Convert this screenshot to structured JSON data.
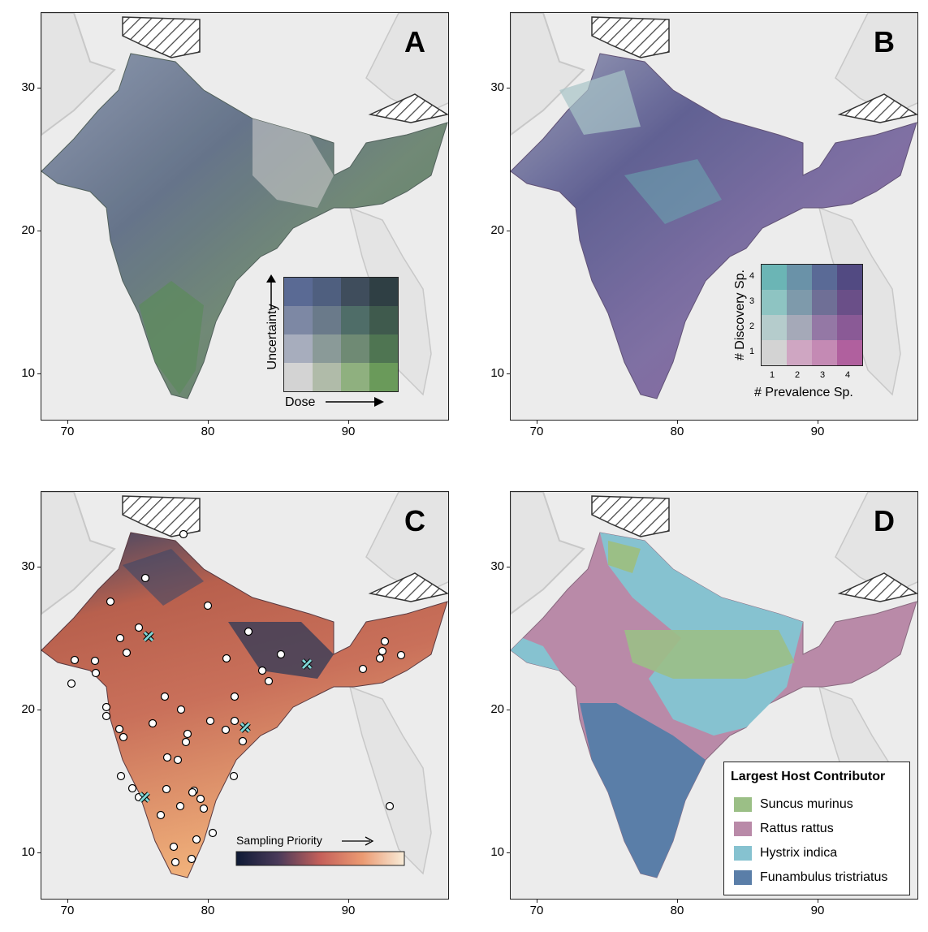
{
  "panels": [
    {
      "id": "A",
      "letter": "A"
    },
    {
      "id": "B",
      "letter": "B"
    },
    {
      "id": "C",
      "letter": "C"
    },
    {
      "id": "D",
      "letter": "D"
    }
  ],
  "axes": {
    "x_ticks": [
      "70",
      "80",
      "90"
    ],
    "y_ticks": [
      "30",
      "20",
      "10"
    ]
  },
  "panel_a_legend": {
    "x_label": "Dose",
    "y_label": "Uncertainty",
    "colors": [
      [
        "#5a6a94",
        "#4f5f7f",
        "#3f4d5c",
        "#2f3f44"
      ],
      [
        "#7d88a4",
        "#6a7a8a",
        "#4f6d68",
        "#3f5a4d"
      ],
      [
        "#a7adbd",
        "#8a9a98",
        "#6f8a74",
        "#4f7552"
      ],
      [
        "#d3d3d3",
        "#b0bba9",
        "#8fb07f",
        "#6a9a5a"
      ]
    ]
  },
  "panel_b_legend": {
    "x_label": "# Prevalence Sp.",
    "y_label": "# Discovery Sp.",
    "x_ticks": [
      "1",
      "2",
      "3",
      "4"
    ],
    "y_ticks": [
      "4",
      "3",
      "2",
      "1"
    ],
    "colors": [
      [
        "#6bb5b5",
        "#6a92a8",
        "#5a6a96",
        "#524a82"
      ],
      [
        "#8ec4c2",
        "#7e9aab",
        "#6f6f96",
        "#6a4f88"
      ],
      [
        "#b5cccc",
        "#a5a9b8",
        "#9478a5",
        "#8a5a96"
      ],
      [
        "#d3d3d3",
        "#cfa6c2",
        "#c48ab4",
        "#b0609e"
      ]
    ]
  },
  "panel_c_legend": {
    "label": "Sampling Priority"
  },
  "panel_d_legend": {
    "title": "Largest Host Contributor",
    "items": [
      {
        "label": "Suncus murinus",
        "color": "#9bbf86"
      },
      {
        "label": "Rattus rattus",
        "color": "#b98aa8"
      },
      {
        "label": "Hystrix indica",
        "color": "#86c2d0"
      },
      {
        "label": "Funambulus tristriatus",
        "color": "#5a7ea8"
      }
    ]
  },
  "colors": {
    "panel_bg": "#ececec",
    "land_other": "#e4e4e4",
    "border_line": "#c8c8c8",
    "hatch_fill": "#ffffff",
    "sample_circle": "#ffffff",
    "sample_cross": "#7fd6d6"
  }
}
